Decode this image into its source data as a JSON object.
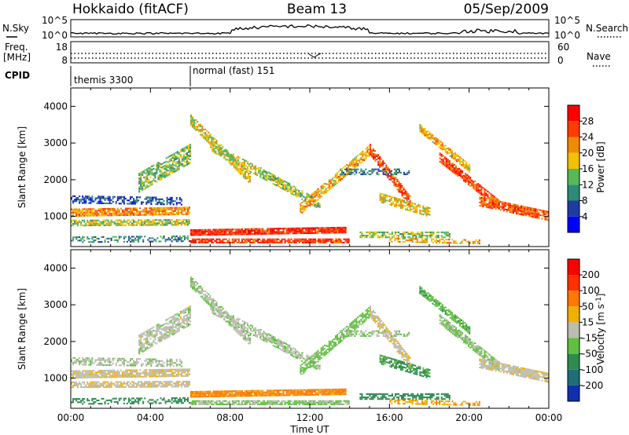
{
  "header": {
    "station": "Hokkaido (fitACF)",
    "beam": "Beam 13",
    "date": "05/Sep/2009"
  },
  "top_panels": {
    "nsky_label": "N.Sky",
    "nsearch_label": "N.Search",
    "freq_label_1": "Freq.",
    "freq_label_2": "[MHz]",
    "nave_label": "Nave",
    "cpid_label": "CPID",
    "nsky_ticks": [
      "10^5",
      "10^0"
    ],
    "nsearch_ticks": [
      "10^5",
      "10^0"
    ],
    "freq_ticks": [
      "18",
      "8"
    ],
    "nave_ticks": [
      "60",
      "0"
    ],
    "cpid_segments": [
      {
        "name": "themis 3300",
        "start_hour": 0.0,
        "end_hour": 6.0
      },
      {
        "name": "normal (fast) 151",
        "start_hour": 6.0,
        "end_hour": 24.0
      }
    ]
  },
  "chart_data": [
    {
      "type": "heatmap",
      "title": "",
      "xlabel": "Time UT",
      "ylabel": "Slant Range [km]",
      "xlim": [
        0,
        24
      ],
      "ylim": [
        180,
        4500
      ],
      "x_tick_labels": [
        "00:00",
        "04:00",
        "08:00",
        "12:00",
        "16:00",
        "20:00",
        "00:00"
      ],
      "y_ticks": [
        1000,
        2000,
        3000,
        4000
      ],
      "colorbar": {
        "label": "Power [dB]",
        "levels": [
          4,
          8,
          12,
          16,
          20,
          24,
          28
        ],
        "colors": [
          "#0000ff",
          "#1e3ca0",
          "#2d8a78",
          "#58b858",
          "#f2c200",
          "#f08a00",
          "#ff3c00",
          "#ff0000"
        ]
      },
      "value_range": [
        0,
        30
      ]
    },
    {
      "type": "heatmap",
      "title": "",
      "xlabel": "Time UT",
      "ylabel": "Slant Range [km]",
      "xlim": [
        0,
        24
      ],
      "ylim": [
        180,
        4500
      ],
      "x_tick_labels": [
        "00:00",
        "04:00",
        "08:00",
        "12:00",
        "16:00",
        "20:00",
        "00:00"
      ],
      "y_ticks": [
        1000,
        2000,
        3000,
        4000
      ],
      "colorbar": {
        "label": "Velocity [m s^-1]",
        "levels": [
          200,
          100,
          50,
          15,
          -15,
          -50,
          -100,
          -200
        ],
        "colors": [
          "#1030b0",
          "#1e6e78",
          "#2d8a50",
          "#60c040",
          "#bcbcb0",
          "#f0b000",
          "#ff7800",
          "#ff3000",
          "#ff0000"
        ]
      },
      "value_range": [
        -250,
        250
      ]
    }
  ],
  "colors": {
    "ground_scatter": "#bcbcb0"
  }
}
